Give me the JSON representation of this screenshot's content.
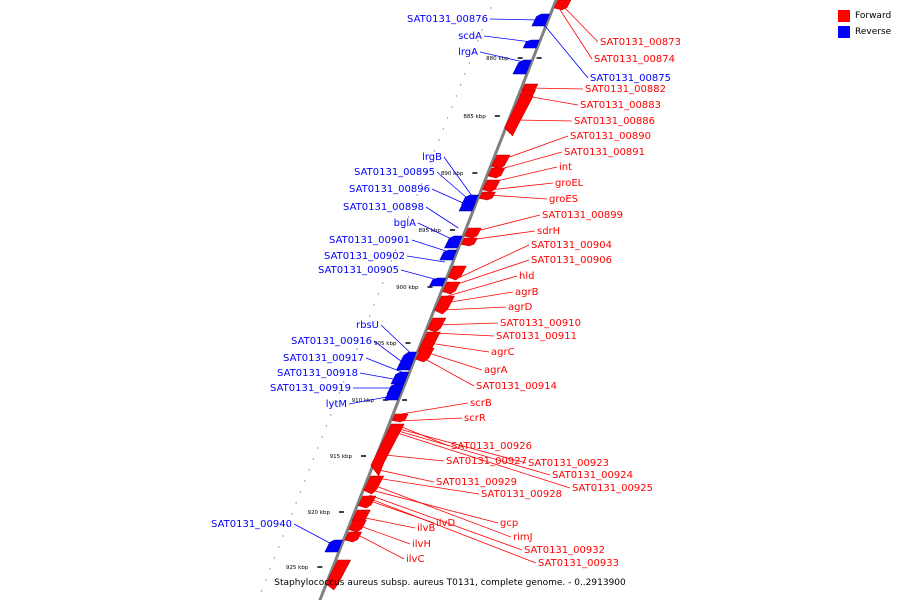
{
  "legend": {
    "forward_label": "Forward",
    "reverse_label": "Reverse",
    "forward_color": "#ff0000",
    "reverse_color": "#0000ff"
  },
  "caption": "Staphylococcus aureus subsp. aureus T0131, complete genome. - 0..2913900",
  "backbone_color": "#808080",
  "ticks": [
    "880 kbp",
    "885 kbp",
    "890 kbp",
    "895 kbp",
    "900 kbp",
    "905 kbp",
    "910 kbp",
    "915 kbp",
    "920 kbp",
    "925 kbp"
  ],
  "forward_genes": [
    "SAT0131_00873",
    "SAT0131_00874",
    "SAT0131_00882",
    "SAT0131_00883",
    "SAT0131_00886",
    "SAT0131_00890",
    "SAT0131_00891",
    "int",
    "groEL",
    "groES",
    "SAT0131_00899",
    "sdrH",
    "SAT0131_00904",
    "SAT0131_00906",
    "hld",
    "agrB",
    "agrD",
    "SAT0131_00910",
    "SAT0131_00911",
    "agrC",
    "agrA",
    "SAT0131_00914",
    "scrB",
    "scrR",
    "SAT0131_00926",
    "SAT0131_00927",
    "SAT0131_00923",
    "SAT0131_00924",
    "SAT0131_00925",
    "SAT0131_00929",
    "SAT0131_00928",
    "gcp",
    "ilvD",
    "rimJ",
    "ilvB",
    "ilvH",
    "ilvC",
    "SAT0131_00932",
    "SAT0131_00933"
  ],
  "reverse_genes": [
    "SAT0131_00876",
    "scdA",
    "lrgA",
    "SAT0131_00875",
    "lrgB",
    "SAT0131_00895",
    "SAT0131_00896",
    "SAT0131_00898",
    "bglA",
    "SAT0131_00901",
    "SAT0131_00902",
    "SAT0131_00905",
    "rbsU",
    "SAT0131_00916",
    "SAT0131_00917",
    "SAT0131_00918",
    "SAT0131_00919",
    "lytM",
    "SAT0131_00940"
  ]
}
